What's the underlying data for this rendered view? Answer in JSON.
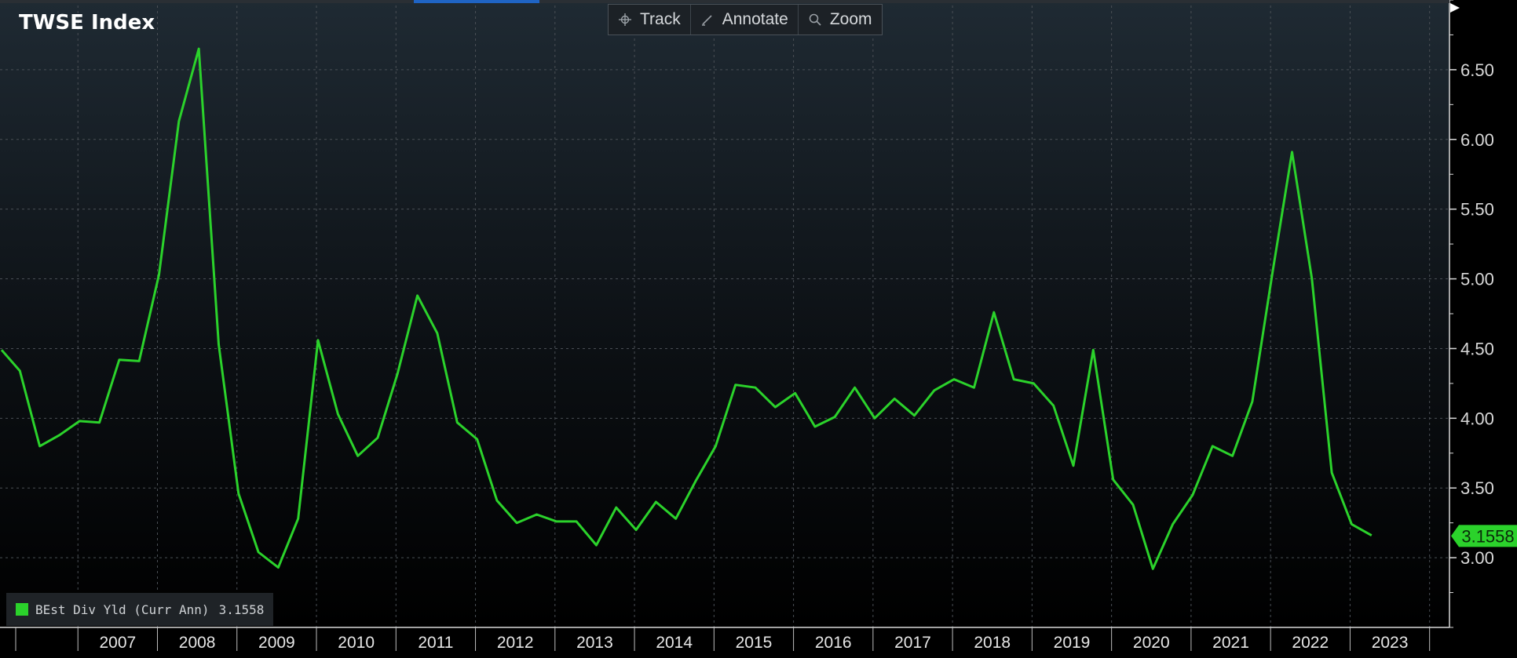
{
  "title": "TWSE Index",
  "toolbar": {
    "track_label": "Track",
    "annotate_label": "Annotate",
    "zoom_label": "Zoom"
  },
  "legend": {
    "label": "BEst Div Yld (Curr Ann)",
    "value": "3.1558"
  },
  "last_value_label": "3.1558",
  "colors": {
    "series": "#2bd22b",
    "background_top": "#1f2a33",
    "background_bottom": "#000000",
    "grid": "#4a4f55",
    "accent_tab": "#1f64c4"
  },
  "chart_data": {
    "type": "line",
    "title": "TWSE Index",
    "xlabel": "",
    "ylabel": "",
    "x_ticks": [
      "2007",
      "2008",
      "2009",
      "2010",
      "2011",
      "2012",
      "2013",
      "2014",
      "2015",
      "2016",
      "2017",
      "2018",
      "2019",
      "2020",
      "2021",
      "2022",
      "2023"
    ],
    "y_ticks": [
      "3.00",
      "3.50",
      "4.00",
      "4.50",
      "5.00",
      "5.50",
      "6.00",
      "6.50"
    ],
    "xlim": [
      2006.02,
      2024.25
    ],
    "ylim": [
      2.5,
      7.0
    ],
    "grid": true,
    "y_axis_side": "right",
    "legend_position": "bottom-left",
    "series": [
      {
        "name": "BEst Div Yld (Curr Ann)",
        "last_value": 3.1558,
        "points": [
          [
            2006.04,
            4.49
          ],
          [
            2006.27,
            4.34
          ],
          [
            2006.52,
            3.8
          ],
          [
            2006.77,
            3.88
          ],
          [
            2007.02,
            3.98
          ],
          [
            2007.27,
            3.97
          ],
          [
            2007.52,
            4.42
          ],
          [
            2007.77,
            4.41
          ],
          [
            2008.02,
            5.03
          ],
          [
            2008.27,
            6.13
          ],
          [
            2008.52,
            6.65
          ],
          [
            2008.77,
            4.53
          ],
          [
            2009.02,
            3.46
          ],
          [
            2009.27,
            3.04
          ],
          [
            2009.52,
            2.93
          ],
          [
            2009.77,
            3.28
          ],
          [
            2010.02,
            4.56
          ],
          [
            2010.27,
            4.03
          ],
          [
            2010.52,
            3.73
          ],
          [
            2010.77,
            3.86
          ],
          [
            2011.02,
            4.32
          ],
          [
            2011.27,
            4.88
          ],
          [
            2011.52,
            4.61
          ],
          [
            2011.77,
            3.97
          ],
          [
            2012.02,
            3.85
          ],
          [
            2012.27,
            3.41
          ],
          [
            2012.52,
            3.25
          ],
          [
            2012.77,
            3.31
          ],
          [
            2013.02,
            3.26
          ],
          [
            2013.27,
            3.26
          ],
          [
            2013.52,
            3.09
          ],
          [
            2013.77,
            3.36
          ],
          [
            2014.02,
            3.2
          ],
          [
            2014.27,
            3.4
          ],
          [
            2014.52,
            3.28
          ],
          [
            2014.77,
            3.55
          ],
          [
            2015.02,
            3.8
          ],
          [
            2015.27,
            4.24
          ],
          [
            2015.52,
            4.22
          ],
          [
            2015.77,
            4.08
          ],
          [
            2016.02,
            4.18
          ],
          [
            2016.27,
            3.94
          ],
          [
            2016.52,
            4.01
          ],
          [
            2016.77,
            4.22
          ],
          [
            2017.02,
            4.0
          ],
          [
            2017.27,
            4.14
          ],
          [
            2017.52,
            4.02
          ],
          [
            2017.77,
            4.2
          ],
          [
            2018.02,
            4.28
          ],
          [
            2018.27,
            4.22
          ],
          [
            2018.52,
            4.76
          ],
          [
            2018.77,
            4.28
          ],
          [
            2019.02,
            4.25
          ],
          [
            2019.27,
            4.09
          ],
          [
            2019.52,
            3.66
          ],
          [
            2019.77,
            4.49
          ],
          [
            2020.02,
            3.56
          ],
          [
            2020.27,
            3.38
          ],
          [
            2020.52,
            2.92
          ],
          [
            2020.77,
            3.24
          ],
          [
            2021.02,
            3.45
          ],
          [
            2021.27,
            3.8
          ],
          [
            2021.52,
            3.73
          ],
          [
            2021.77,
            4.12
          ],
          [
            2022.02,
            5.03
          ],
          [
            2022.27,
            5.91
          ],
          [
            2022.52,
            5.0
          ],
          [
            2022.77,
            3.61
          ],
          [
            2023.02,
            3.24
          ],
          [
            2023.27,
            3.16
          ]
        ]
      }
    ]
  }
}
